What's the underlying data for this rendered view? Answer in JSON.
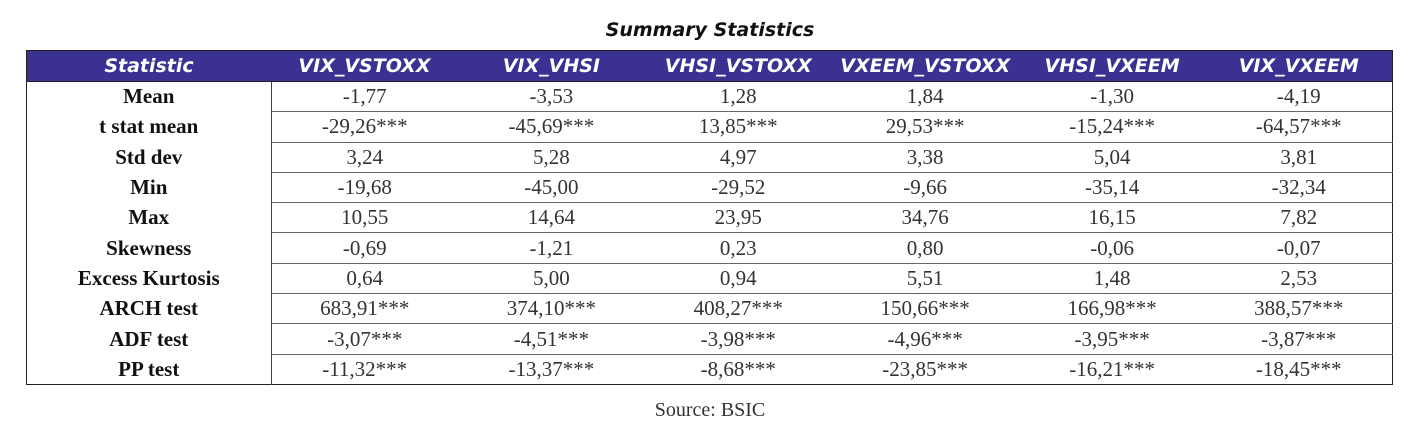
{
  "title": "Summary Statistics",
  "headers": [
    "Statistic",
    "VIX_VSTOXX",
    "VIX_VHSI",
    "VHSI_VSTOXX",
    "VXEEM_VSTOXX",
    "VHSI_VXEEM",
    "VIX_VXEEM"
  ],
  "rows": [
    {
      "label": "Mean",
      "values": [
        "-1,77",
        "-3,53",
        "1,28",
        "1,84",
        "-1,30",
        "-4,19"
      ]
    },
    {
      "label": "t stat mean",
      "values": [
        "-29,26***",
        "-45,69***",
        "13,85***",
        "29,53***",
        "-15,24***",
        "-64,57***"
      ]
    },
    {
      "label": "Std dev",
      "values": [
        "3,24",
        "5,28",
        "4,97",
        "3,38",
        "5,04",
        "3,81"
      ]
    },
    {
      "label": "Min",
      "values": [
        "-19,68",
        "-45,00",
        "-29,52",
        "-9,66",
        "-35,14",
        "-32,34"
      ]
    },
    {
      "label": "Max",
      "values": [
        "10,55",
        "14,64",
        "23,95",
        "34,76",
        "16,15",
        "7,82"
      ]
    },
    {
      "label": "Skewness",
      "values": [
        "-0,69",
        "-1,21",
        "0,23",
        "0,80",
        "-0,06",
        "-0,07"
      ]
    },
    {
      "label": "Excess Kurtosis",
      "values": [
        "0,64",
        "5,00",
        "0,94",
        "5,51",
        "1,48",
        "2,53"
      ]
    },
    {
      "label": "ARCH test",
      "values": [
        "683,91***",
        "374,10***",
        "408,27***",
        "150,66***",
        "166,98***",
        "388,57***"
      ]
    },
    {
      "label": "ADF test",
      "values": [
        "-3,07***",
        "-4,51***",
        "-3,98***",
        "-4,96***",
        "-3,95***",
        "-3,87***"
      ]
    },
    {
      "label": "PP test",
      "values": [
        "-11,32***",
        "-13,37***",
        "-8,68***",
        "-23,85***",
        "-16,21***",
        "-18,45***"
      ]
    }
  ],
  "source": "Source: BSIC"
}
